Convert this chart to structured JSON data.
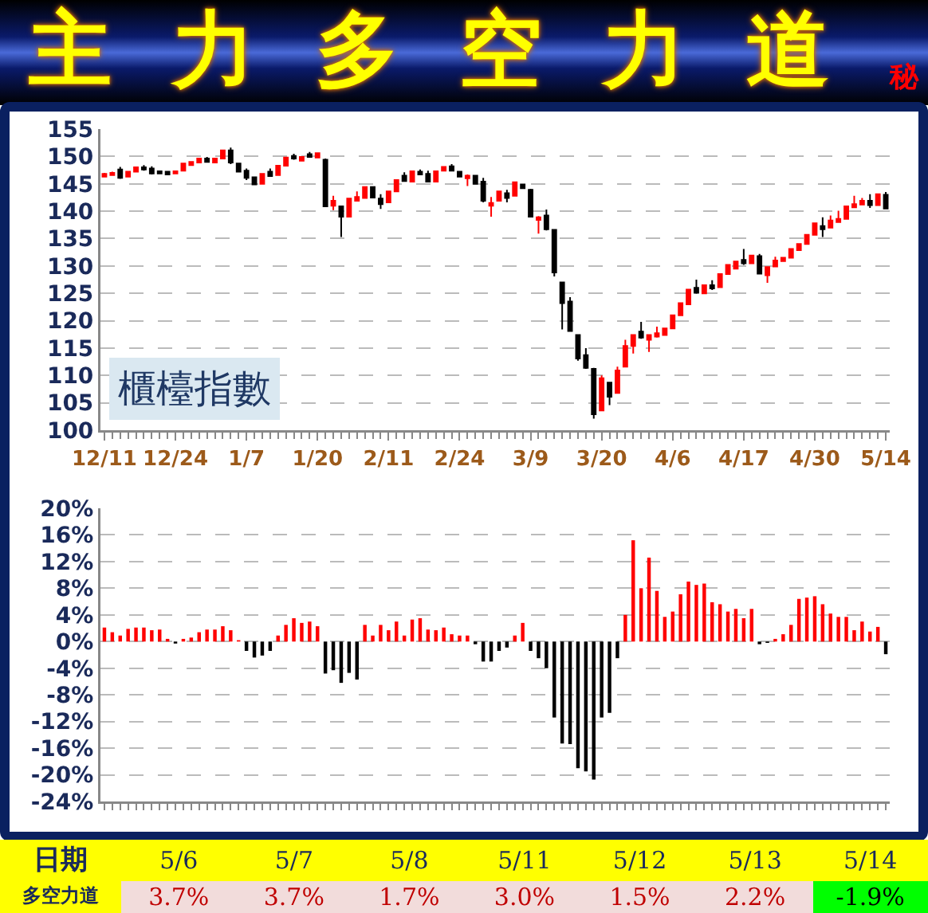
{
  "chart_data": [
    {
      "type": "candlestick",
      "title": "主力多空力道",
      "subtitle": "秘",
      "categories": [
        "12/11",
        null,
        null,
        null,
        null,
        null,
        null,
        null,
        null,
        "12/24",
        null,
        null,
        null,
        null,
        null,
        null,
        null,
        null,
        "1/7",
        null,
        null,
        null,
        null,
        null,
        null,
        null,
        null,
        "1/20",
        null,
        null,
        null,
        null,
        null,
        null,
        null,
        null,
        "2/11",
        null,
        null,
        null,
        null,
        null,
        null,
        null,
        null,
        "2/24",
        null,
        null,
        null,
        null,
        null,
        null,
        null,
        null,
        "3/9",
        null,
        null,
        null,
        null,
        null,
        null,
        null,
        null,
        "3/20",
        null,
        null,
        null,
        null,
        null,
        null,
        null,
        null,
        "4/6",
        null,
        null,
        null,
        null,
        null,
        null,
        null,
        null,
        "4/17",
        null,
        null,
        null,
        null,
        null,
        null,
        null,
        null,
        "4/30",
        null,
        null,
        null,
        null,
        null,
        null,
        null,
        null,
        "5/14"
      ],
      "ohlc": [
        [
          146.3,
          147.0,
          146.2,
          146.8
        ],
        [
          146.6,
          147.2,
          146.5,
          147.0
        ],
        [
          147.6,
          148.1,
          145.9,
          146.1
        ],
        [
          146.3,
          147.2,
          146.3,
          147.2
        ],
        [
          147.2,
          148.0,
          147.2,
          148.0
        ],
        [
          148.0,
          148.4,
          147.4,
          147.6
        ],
        [
          147.8,
          148.2,
          146.7,
          146.9
        ],
        [
          147.3,
          147.4,
          146.9,
          146.9
        ],
        [
          147.2,
          147.3,
          146.7,
          146.7
        ],
        [
          146.9,
          147.3,
          146.9,
          147.3
        ],
        [
          147.4,
          148.7,
          147.4,
          148.7
        ],
        [
          148.4,
          149.0,
          148.4,
          149.0
        ],
        [
          148.9,
          149.6,
          148.9,
          149.6
        ],
        [
          149.6,
          149.9,
          148.9,
          149.0
        ],
        [
          148.9,
          149.6,
          148.9,
          149.6
        ],
        [
          149.6,
          151.1,
          149.6,
          151.1
        ],
        [
          151.1,
          151.6,
          148.6,
          148.9
        ],
        [
          148.7,
          148.8,
          147.2,
          147.2
        ],
        [
          147.4,
          147.8,
          145.7,
          146.1
        ],
        [
          146.2,
          146.2,
          144.9,
          144.9
        ],
        [
          145.0,
          146.8,
          145.0,
          146.8
        ],
        [
          147.2,
          147.8,
          146.3,
          146.4
        ],
        [
          146.6,
          148.3,
          146.6,
          148.3
        ],
        [
          148.3,
          149.8,
          148.3,
          149.8
        ],
        [
          150.1,
          150.5,
          149.4,
          149.6
        ],
        [
          149.2,
          149.9,
          149.2,
          149.9
        ],
        [
          150.4,
          150.8,
          149.9,
          149.9
        ],
        [
          149.8,
          150.6,
          149.8,
          150.6
        ],
        [
          149.4,
          149.6,
          140.8,
          140.9
        ],
        [
          141.0,
          142.8,
          140.2,
          141.9
        ],
        [
          140.9,
          141.0,
          135.3,
          139.0
        ],
        [
          139.0,
          142.3,
          139.0,
          142.3
        ],
        [
          141.9,
          143.6,
          141.9,
          142.6
        ],
        [
          142.4,
          144.4,
          142.4,
          144.4
        ],
        [
          144.4,
          144.4,
          142.5,
          142.5
        ],
        [
          142.3,
          143.1,
          140.4,
          141.3
        ],
        [
          141.6,
          143.6,
          141.6,
          143.6
        ],
        [
          143.6,
          145.7,
          143.6,
          145.7
        ],
        [
          146.5,
          147.1,
          145.5,
          145.5
        ],
        [
          145.4,
          147.3,
          145.4,
          147.3
        ],
        [
          147.2,
          147.6,
          146.7,
          146.7
        ],
        [
          146.8,
          147.4,
          145.4,
          145.4
        ],
        [
          145.4,
          147.3,
          145.4,
          147.3
        ],
        [
          147.4,
          148.1,
          147.4,
          148.1
        ],
        [
          148.2,
          148.6,
          147.4,
          147.4
        ],
        [
          147.2,
          147.2,
          146.3,
          146.3
        ],
        [
          146.0,
          146.7,
          144.6,
          146.5
        ],
        [
          146.5,
          146.5,
          145.0,
          145.0
        ],
        [
          145.4,
          146.1,
          141.6,
          141.9
        ],
        [
          141.0,
          142.6,
          139.0,
          141.5
        ],
        [
          141.9,
          143.6,
          141.9,
          143.6
        ],
        [
          143.3,
          143.9,
          141.6,
          142.4
        ],
        [
          142.8,
          145.3,
          142.8,
          145.3
        ],
        [
          144.9,
          145.0,
          144.2,
          144.2
        ],
        [
          143.9,
          144.1,
          138.9,
          139.0
        ],
        [
          138.4,
          139.1,
          135.9,
          138.9
        ],
        [
          139.2,
          140.3,
          136.5,
          136.7
        ],
        [
          136.6,
          136.6,
          128.1,
          128.8
        ],
        [
          127.0,
          127.0,
          118.4,
          123.2
        ],
        [
          123.5,
          124.3,
          118.0,
          118.1
        ],
        [
          117.4,
          117.4,
          112.7,
          113.1
        ],
        [
          113.7,
          115.0,
          111.2,
          111.4
        ],
        [
          111.2,
          111.4,
          102.1,
          102.9
        ],
        [
          103.6,
          110.0,
          103.5,
          109.5
        ],
        [
          108.7,
          108.7,
          104.6,
          106.1
        ],
        [
          106.8,
          111.6,
          106.7,
          110.9
        ],
        [
          111.6,
          116.5,
          111.6,
          115.4
        ],
        [
          115.4,
          117.5,
          114.0,
          117.4
        ],
        [
          118.0,
          119.8,
          116.7,
          116.9
        ],
        [
          116.5,
          117.4,
          114.3,
          117.4
        ],
        [
          117.1,
          118.9,
          116.9,
          117.7
        ],
        [
          117.4,
          118.6,
          117.4,
          118.6
        ],
        [
          118.6,
          121.0,
          118.6,
          121.0
        ],
        [
          121.0,
          123.2,
          121.0,
          123.2
        ],
        [
          123.0,
          125.7,
          123.0,
          125.7
        ],
        [
          126.0,
          127.5,
          124.9,
          125.1
        ],
        [
          125.0,
          126.5,
          125.0,
          126.5
        ],
        [
          126.5,
          127.4,
          125.6,
          125.9
        ],
        [
          126.1,
          128.5,
          126.1,
          128.5
        ],
        [
          128.5,
          130.2,
          128.5,
          130.2
        ],
        [
          129.5,
          130.8,
          129.5,
          130.8
        ],
        [
          131.1,
          133.1,
          130.2,
          130.5
        ],
        [
          130.5,
          131.9,
          130.5,
          131.9
        ],
        [
          131.8,
          132.2,
          128.5,
          128.6
        ],
        [
          128.3,
          129.8,
          126.9,
          129.8
        ],
        [
          129.9,
          131.7,
          129.9,
          131.0
        ],
        [
          130.9,
          131.5,
          130.9,
          131.5
        ],
        [
          131.5,
          133.1,
          131.5,
          133.1
        ],
        [
          132.9,
          134.0,
          132.9,
          134.0
        ],
        [
          134.0,
          135.7,
          134.0,
          135.7
        ],
        [
          135.7,
          137.8,
          135.7,
          137.8
        ],
        [
          137.3,
          138.9,
          135.3,
          136.7
        ],
        [
          137.0,
          139.2,
          137.0,
          138.3
        ],
        [
          138.0,
          140.1,
          138.0,
          138.6
        ],
        [
          138.6,
          140.9,
          138.6,
          140.9
        ],
        [
          140.7,
          142.8,
          140.7,
          141.3
        ],
        [
          141.2,
          142.4,
          141.2,
          141.9
        ],
        [
          141.9,
          143.1,
          140.6,
          141.1
        ],
        [
          141.1,
          143.1,
          141.1,
          143.1
        ],
        [
          143.0,
          143.5,
          140.4,
          140.5
        ]
      ],
      "colors": [
        "#ff0000",
        "#ff0000",
        "#000000",
        "#ff0000",
        "#ff0000",
        "#000000",
        "#000000",
        "#000000",
        "#000000",
        "#ff0000",
        "#ff0000",
        "#ff0000",
        "#ff0000",
        "#000000",
        "#ff0000",
        "#ff0000",
        "#000000",
        "#000000",
        "#000000",
        "#000000",
        "#ff0000",
        "#000000",
        "#ff0000",
        "#ff0000",
        "#000000",
        "#ff0000",
        "#000000",
        "#ff0000",
        "#000000",
        "#ff0000",
        "#000000",
        "#ff0000",
        "#ff0000",
        "#ff0000",
        "#000000",
        "#000000",
        "#ff0000",
        "#ff0000",
        "#000000",
        "#ff0000",
        "#000000",
        "#000000",
        "#ff0000",
        "#ff0000",
        "#000000",
        "#000000",
        "#ff0000",
        "#000000",
        "#000000",
        "#ff0000",
        "#ff0000",
        "#000000",
        "#ff0000",
        "#000000",
        "#000000",
        "#ff0000",
        "#000000",
        "#000000",
        "#000000",
        "#000000",
        "#000000",
        "#000000",
        "#000000",
        "#ff0000",
        "#000000",
        "#ff0000",
        "#ff0000",
        "#ff0000",
        "#000000",
        "#ff0000",
        "#ff0000",
        "#ff0000",
        "#ff0000",
        "#ff0000",
        "#ff0000",
        "#000000",
        "#ff0000",
        "#000000",
        "#ff0000",
        "#ff0000",
        "#ff0000",
        "#000000",
        "#ff0000",
        "#000000",
        "#ff0000",
        "#ff0000",
        "#ff0000",
        "#ff0000",
        "#ff0000",
        "#ff0000",
        "#ff0000",
        "#000000",
        "#ff0000",
        "#ff0000",
        "#ff0000",
        "#ff0000",
        "#ff0000",
        "#000000",
        "#ff0000",
        "#000000"
      ],
      "ylim": [
        100,
        155
      ],
      "yticks": [
        100,
        105,
        110,
        115,
        120,
        125,
        130,
        135,
        140,
        145,
        150,
        155
      ],
      "grid": "y",
      "annotations": [
        "櫃檯指數"
      ]
    },
    {
      "type": "bar",
      "categories": [
        null,
        null,
        null,
        null,
        null,
        null,
        null,
        null,
        null,
        null,
        null,
        null,
        null,
        null,
        null,
        null,
        null,
        null,
        null,
        null,
        null,
        null,
        null,
        null,
        null,
        null,
        null,
        null,
        null,
        null,
        null,
        null,
        null,
        null,
        null,
        null,
        null,
        null,
        null,
        null,
        null,
        null,
        null,
        null,
        null,
        null,
        null,
        null,
        null,
        null,
        null,
        null,
        null,
        null,
        null,
        null,
        null,
        null,
        null,
        null,
        null,
        null,
        null,
        null,
        null,
        null,
        null,
        null,
        null,
        null,
        null,
        null,
        null,
        null,
        null,
        null,
        null,
        null,
        null,
        null,
        null,
        null,
        null,
        null,
        null,
        null,
        null,
        null,
        null,
        null,
        null,
        null,
        null,
        null,
        null,
        null,
        null,
        null,
        null,
        null
      ],
      "values": [
        2.1,
        1.4,
        0.9,
        1.9,
        2.1,
        2.1,
        1.7,
        1.8,
        0.4,
        -0.3,
        0.4,
        0.6,
        1.4,
        1.8,
        1.8,
        2.3,
        1.7,
        0.2,
        -1.4,
        -2.4,
        -2.1,
        -1.4,
        0.9,
        2.5,
        3.5,
        2.8,
        3.0,
        2.3,
        -4.8,
        -4.3,
        -6.2,
        -4.7,
        -5.7,
        2.5,
        0.9,
        2.5,
        1.7,
        3.0,
        0.9,
        3.3,
        3.5,
        1.8,
        1.7,
        2.1,
        1.1,
        0.9,
        0.9,
        -0.4,
        -3.0,
        -3.0,
        -1.4,
        -0.9,
        0.9,
        2.8,
        -1.4,
        -2.5,
        -4.0,
        -11.4,
        -15.3,
        -15.4,
        -19.0,
        -19.5,
        -20.7,
        -11.4,
        -10.7,
        -2.5,
        4.0,
        15.2,
        8.0,
        12.6,
        7.6,
        3.7,
        4.5,
        7.1,
        9.0,
        8.5,
        8.7,
        5.9,
        5.6,
        4.5,
        4.9,
        3.5,
        4.9,
        -0.4,
        -0.2,
        0.4,
        1.1,
        2.5,
        6.4,
        6.6,
        6.8,
        5.6,
        4.2,
        3.7,
        3.7,
        1.7,
        3.0,
        1.5,
        2.2,
        -1.9
      ],
      "colors": [
        "#ff0000",
        "#ff0000",
        "#ff0000",
        "#ff0000",
        "#ff0000",
        "#ff0000",
        "#ff0000",
        "#ff0000",
        "#ff0000",
        "#000000",
        "#ff0000",
        "#ff0000",
        "#ff0000",
        "#ff0000",
        "#ff0000",
        "#ff0000",
        "#ff0000",
        "#ff0000",
        "#000000",
        "#000000",
        "#000000",
        "#000000",
        "#ff0000",
        "#ff0000",
        "#ff0000",
        "#ff0000",
        "#ff0000",
        "#ff0000",
        "#000000",
        "#000000",
        "#000000",
        "#000000",
        "#000000",
        "#ff0000",
        "#ff0000",
        "#ff0000",
        "#ff0000",
        "#ff0000",
        "#ff0000",
        "#ff0000",
        "#ff0000",
        "#ff0000",
        "#ff0000",
        "#ff0000",
        "#ff0000",
        "#ff0000",
        "#ff0000",
        "#000000",
        "#000000",
        "#000000",
        "#000000",
        "#000000",
        "#ff0000",
        "#ff0000",
        "#000000",
        "#000000",
        "#000000",
        "#000000",
        "#000000",
        "#000000",
        "#000000",
        "#000000",
        "#000000",
        "#000000",
        "#000000",
        "#000000",
        "#ff0000",
        "#ff0000",
        "#ff0000",
        "#ff0000",
        "#ff0000",
        "#ff0000",
        "#ff0000",
        "#ff0000",
        "#ff0000",
        "#ff0000",
        "#ff0000",
        "#ff0000",
        "#ff0000",
        "#ff0000",
        "#ff0000",
        "#ff0000",
        "#ff0000",
        "#000000",
        "#000000",
        "#ff0000",
        "#ff0000",
        "#ff0000",
        "#ff0000",
        "#ff0000",
        "#ff0000",
        "#ff0000",
        "#ff0000",
        "#ff0000",
        "#ff0000",
        "#ff0000",
        "#ff0000",
        "#ff0000",
        "#ff0000",
        "#000000"
      ],
      "ylim": [
        -24,
        20
      ],
      "yticks": [
        {
          "value": -24,
          "label": "-24%"
        },
        {
          "value": -20,
          "label": "-20%"
        },
        {
          "value": -16,
          "label": "-16%"
        },
        {
          "value": -12,
          "label": "-12%"
        },
        {
          "value": -8,
          "label": "-8%"
        },
        {
          "value": -4,
          "label": "-4%"
        },
        {
          "value": 0,
          "label": "0%"
        },
        {
          "value": 4,
          "label": "4%"
        },
        {
          "value": 8,
          "label": "8%"
        },
        {
          "value": 12,
          "label": "12%"
        },
        {
          "value": 16,
          "label": "16%"
        },
        {
          "value": 20,
          "label": "20%"
        }
      ],
      "grid": "y",
      "tick_labels": "y"
    },
    {
      "type": "other",
      "xlabel": "日期",
      "ylabel": "多空力道",
      "categories": [
        "5/6",
        "5/7",
        "5/8",
        "5/11",
        "5/12",
        "5/13",
        "5/14"
      ],
      "values": [
        3.7,
        3.7,
        1.7,
        3.0,
        1.5,
        2.2,
        -1.9
      ],
      "value_labels": [
        "3.7%",
        "3.7%",
        "1.7%",
        "3.0%",
        "1.5%",
        "2.2%",
        "-1.9%"
      ]
    }
  ]
}
